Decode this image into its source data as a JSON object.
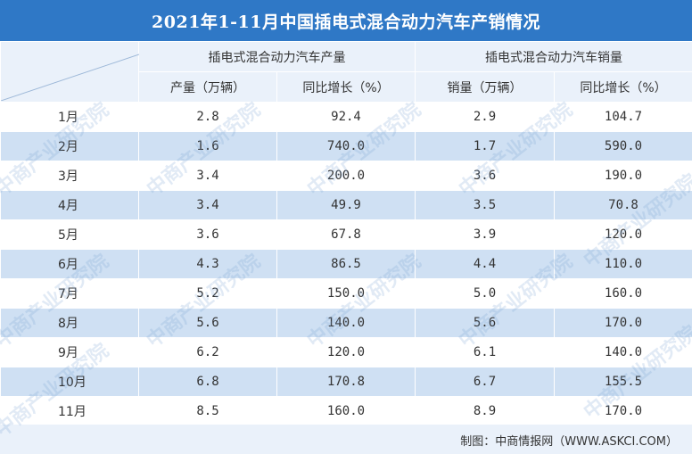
{
  "title": "2021年1-11月中国插电式混合动力汽车产销情况",
  "header": {
    "production_group": "插电式混合动力汽车产量",
    "sales_group": "插电式混合动力汽车销量",
    "production_col": "产量（万辆）",
    "production_yoy_col": "同比增长（%）",
    "sales_col": "销量（万辆）",
    "sales_yoy_col": "同比增长（%）"
  },
  "rows": [
    {
      "month": "1月",
      "production": "2.8",
      "production_yoy": "92.4",
      "sales": "2.9",
      "sales_yoy": "104.7"
    },
    {
      "month": "2月",
      "production": "1.6",
      "production_yoy": "740.0",
      "sales": "1.7",
      "sales_yoy": "590.0"
    },
    {
      "month": "3月",
      "production": "3.4",
      "production_yoy": "200.0",
      "sales": "3.6",
      "sales_yoy": "190.0"
    },
    {
      "month": "4月",
      "production": "3.4",
      "production_yoy": "49.9",
      "sales": "3.5",
      "sales_yoy": "70.8"
    },
    {
      "month": "5月",
      "production": "3.6",
      "production_yoy": "67.8",
      "sales": "3.9",
      "sales_yoy": "120.0"
    },
    {
      "month": "6月",
      "production": "4.3",
      "production_yoy": "86.5",
      "sales": "4.4",
      "sales_yoy": "110.0"
    },
    {
      "month": "7月",
      "production": "5.2",
      "production_yoy": "150.0",
      "sales": "5.0",
      "sales_yoy": "160.0"
    },
    {
      "month": "8月",
      "production": "5.6",
      "production_yoy": "140.0",
      "sales": "5.6",
      "sales_yoy": "170.0"
    },
    {
      "month": "9月",
      "production": "6.2",
      "production_yoy": "120.0",
      "sales": "6.1",
      "sales_yoy": "140.0"
    },
    {
      "month": "10月",
      "production": "6.8",
      "production_yoy": "170.8",
      "sales": "6.7",
      "sales_yoy": "155.5"
    },
    {
      "month": "11月",
      "production": "8.5",
      "production_yoy": "160.0",
      "sales": "8.9",
      "sales_yoy": "170.0"
    }
  ],
  "footer": "制图：中商情报网（WWW.ASKCI.COM）",
  "watermark": "中商产业研究院",
  "colors": {
    "title_bg": "#2f78c6",
    "light_row": "#eaf1fa",
    "band_row": "#cfe0f3"
  }
}
